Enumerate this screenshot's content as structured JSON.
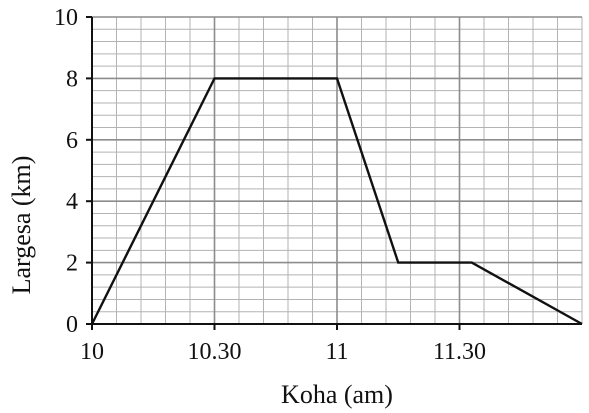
{
  "chart_data": {
    "type": "line",
    "xlabel": "Koha (am)",
    "ylabel": "Largesa (km)",
    "x_ticks": [
      {
        "value": 0,
        "label": "10"
      },
      {
        "value": 30,
        "label": "10.30"
      },
      {
        "value": 60,
        "label": "11"
      },
      {
        "value": 90,
        "label": "11.30"
      }
    ],
    "y_ticks": [
      0,
      2,
      4,
      6,
      8,
      10
    ],
    "xlim": [
      0,
      120
    ],
    "ylim": [
      0,
      10
    ],
    "grid": true,
    "minor_grid_divisions": 5,
    "series": [
      {
        "x": [
          0,
          30,
          60,
          75,
          93,
          120
        ],
        "y": [
          0,
          8,
          8,
          2,
          2,
          0
        ]
      }
    ]
  },
  "colors": {
    "minor_grid": "#b3b3b3",
    "major_grid": "#8c8c8c",
    "axis": "#111111",
    "line": "#111111"
  }
}
